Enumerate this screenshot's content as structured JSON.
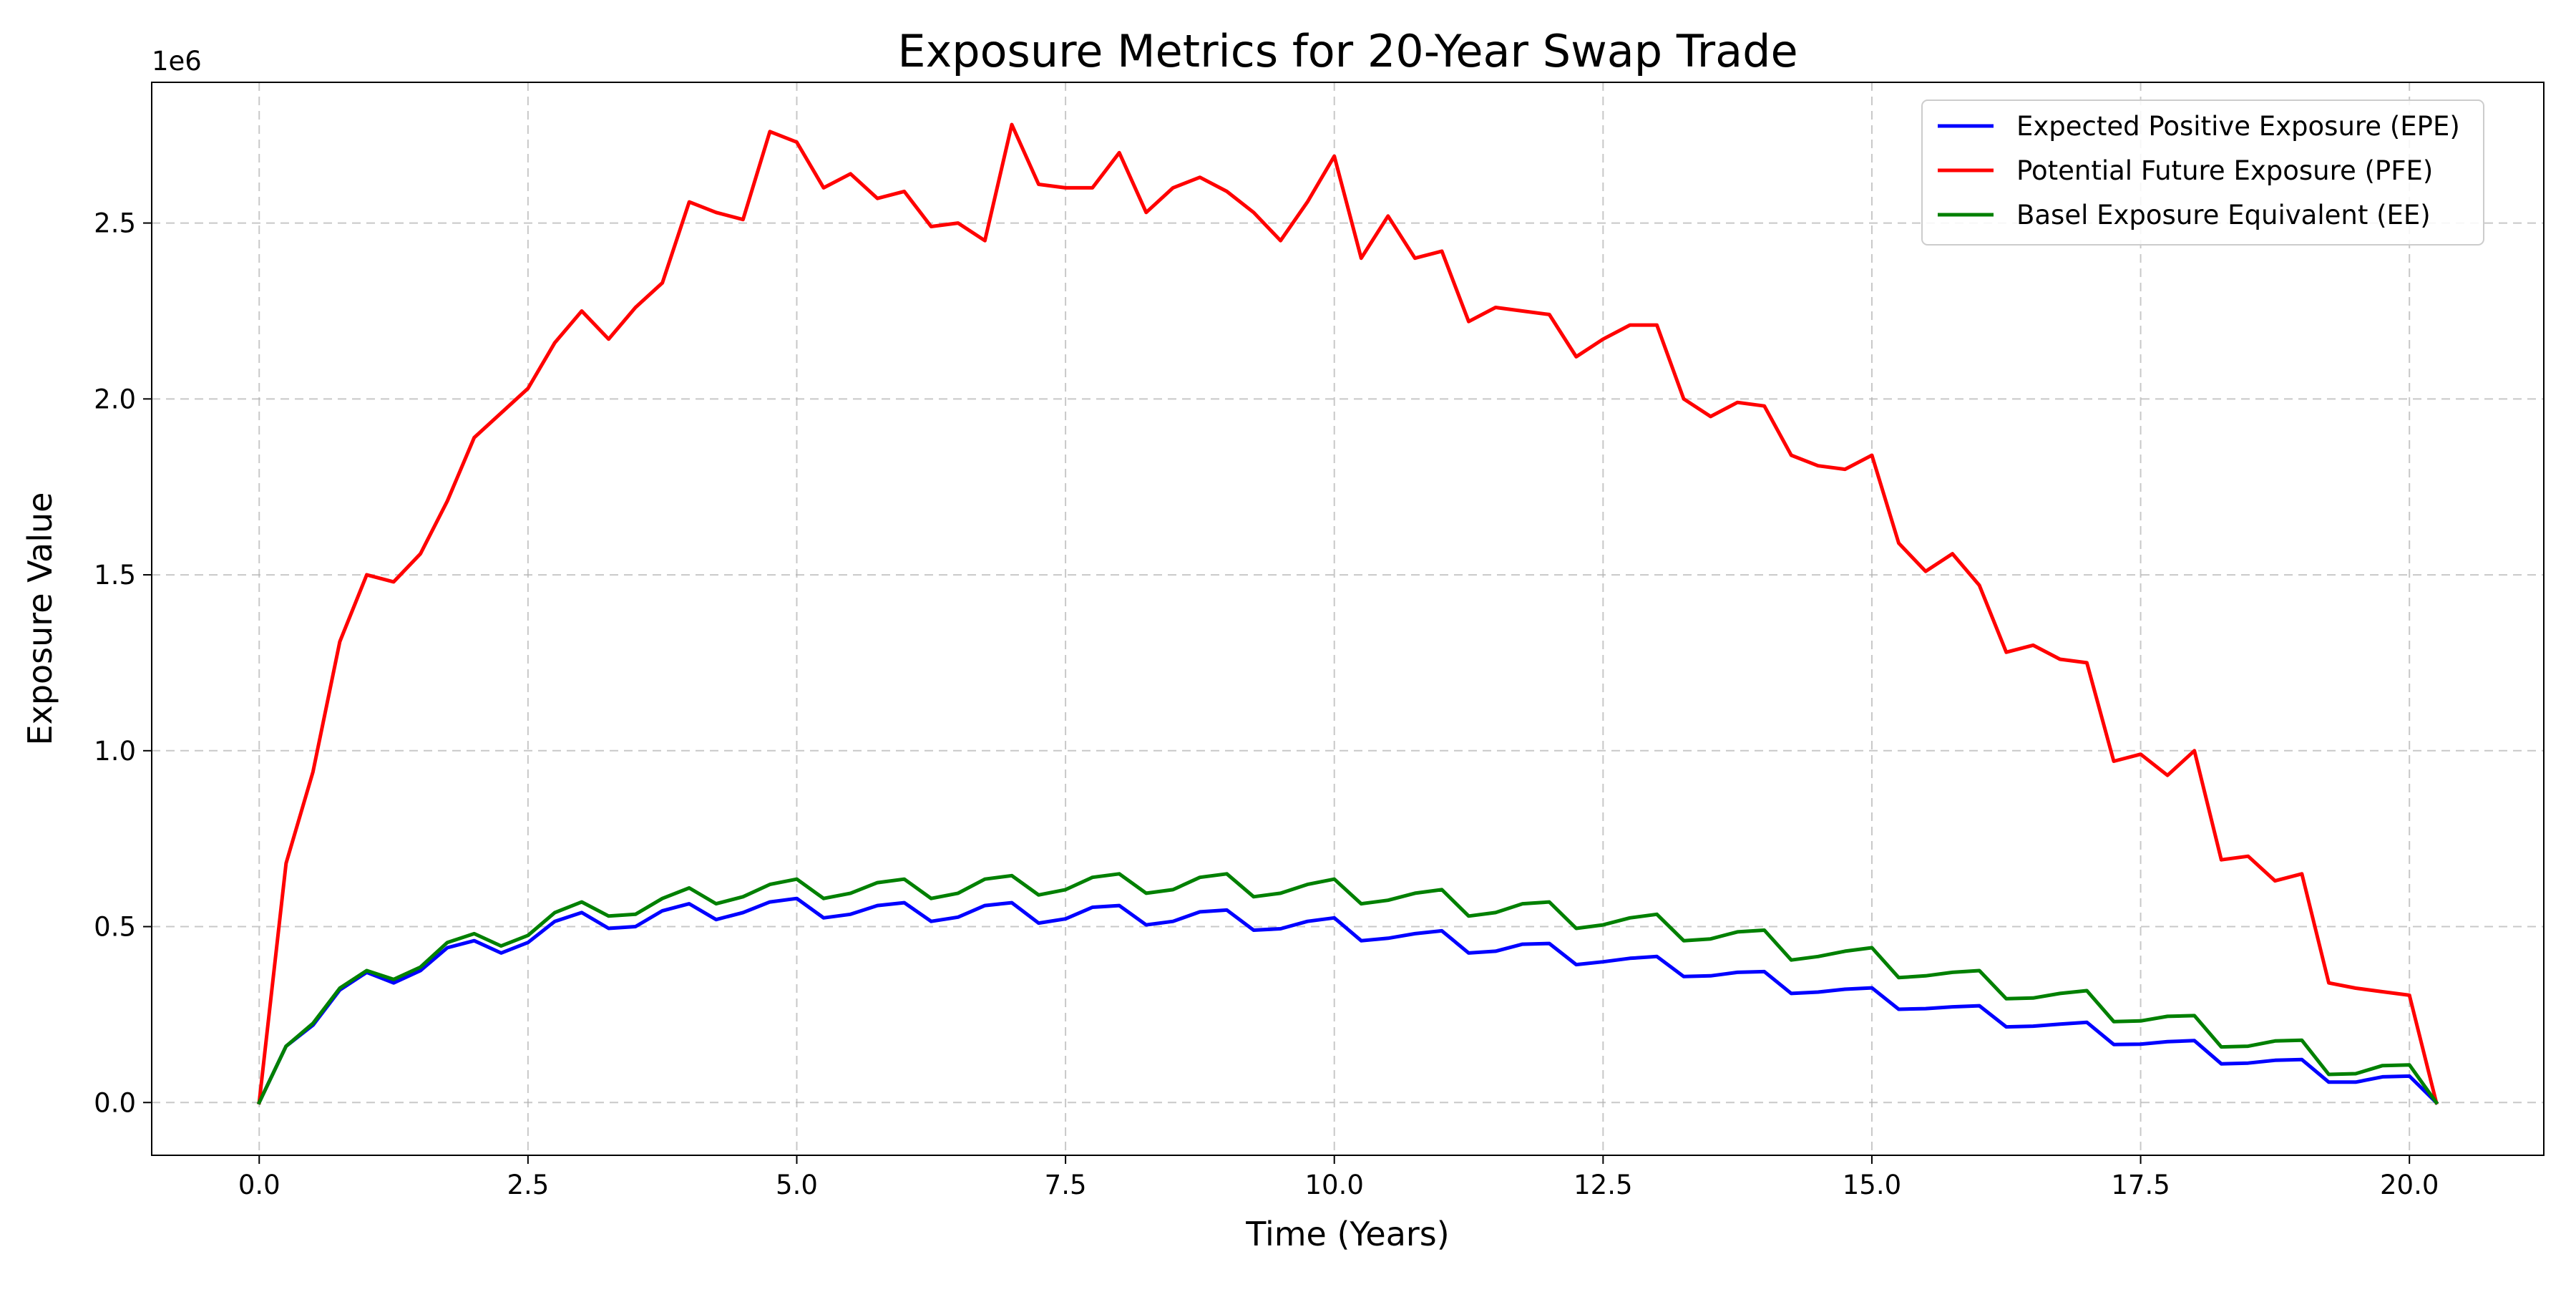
{
  "chart_data": {
    "type": "line",
    "title": "Exposure Metrics for 20-Year Swap Trade",
    "xlabel": "Time (Years)",
    "ylabel": "Exposure Value",
    "y_scale_label": "1e6",
    "xlim": [
      -1.0,
      21.25
    ],
    "ylim": [
      -150000,
      2900000
    ],
    "x_ticks": [
      0.0,
      2.5,
      5.0,
      7.5,
      10.0,
      12.5,
      15.0,
      17.5,
      20.0
    ],
    "x_tick_labels": [
      "0.0",
      "2.5",
      "5.0",
      "7.5",
      "10.0",
      "12.5",
      "15.0",
      "17.5",
      "20.0"
    ],
    "y_ticks": [
      0,
      500000,
      1000000,
      1500000,
      2000000,
      2500000
    ],
    "y_tick_labels": [
      "0.0",
      "0.5",
      "1.0",
      "1.5",
      "2.0",
      "2.5"
    ],
    "grid": true,
    "legend_position": "top-right",
    "x_start": 0.0,
    "x_step": 0.25,
    "series": [
      {
        "name": "Expected Positive Exposure (EPE)",
        "color": "#0000ff",
        "values": [
          0,
          160000,
          220000,
          320000,
          370000,
          340000,
          375000,
          440000,
          460000,
          425000,
          455000,
          515000,
          540000,
          495000,
          500000,
          545000,
          565000,
          520000,
          540000,
          570000,
          580000,
          525000,
          535000,
          560000,
          568000,
          515000,
          527000,
          560000,
          568000,
          510000,
          522000,
          555000,
          560000,
          505000,
          515000,
          542000,
          547000,
          490000,
          494000,
          515000,
          525000,
          460000,
          467000,
          480000,
          488000,
          425000,
          430000,
          450000,
          452000,
          392000,
          400000,
          410000,
          415000,
          358000,
          360000,
          370000,
          372000,
          310000,
          314000,
          322000,
          326000,
          265000,
          267000,
          272000,
          275000,
          215000,
          217000,
          223000,
          228000,
          165000,
          166000,
          173000,
          176000,
          110000,
          112000,
          120000,
          122000,
          58000,
          58000,
          73000,
          75000,
          0
        ]
      },
      {
        "name": "Potential Future Exposure (PFE)",
        "color": "#ff0000",
        "values": [
          0,
          680000,
          940000,
          1310000,
          1500000,
          1480000,
          1560000,
          1710000,
          1890000,
          1960000,
          2030000,
          2160000,
          2250000,
          2170000,
          2260000,
          2330000,
          2560000,
          2530000,
          2510000,
          2760000,
          2730000,
          2600000,
          2640000,
          2570000,
          2590000,
          2490000,
          2500000,
          2450000,
          2780000,
          2610000,
          2600000,
          2600000,
          2700000,
          2530000,
          2600000,
          2630000,
          2590000,
          2530000,
          2450000,
          2560000,
          2690000,
          2400000,
          2520000,
          2400000,
          2420000,
          2220000,
          2260000,
          2250000,
          2240000,
          2120000,
          2170000,
          2210000,
          2210000,
          2000000,
          1950000,
          1990000,
          1980000,
          1840000,
          1810000,
          1800000,
          1840000,
          1590000,
          1510000,
          1560000,
          1470000,
          1280000,
          1300000,
          1260000,
          1250000,
          970000,
          990000,
          930000,
          1000000,
          690000,
          700000,
          630000,
          650000,
          340000,
          325000,
          315000,
          305000,
          0
        ]
      },
      {
        "name": "Basel Exposure Equivalent (EE)",
        "color": "#008000",
        "values": [
          0,
          160000,
          225000,
          325000,
          375000,
          350000,
          385000,
          455000,
          480000,
          445000,
          475000,
          540000,
          570000,
          530000,
          535000,
          580000,
          610000,
          565000,
          585000,
          620000,
          635000,
          580000,
          595000,
          625000,
          635000,
          580000,
          595000,
          635000,
          645000,
          590000,
          605000,
          640000,
          650000,
          595000,
          605000,
          640000,
          650000,
          585000,
          595000,
          620000,
          635000,
          565000,
          575000,
          595000,
          605000,
          530000,
          540000,
          565000,
          570000,
          495000,
          505000,
          525000,
          535000,
          460000,
          465000,
          485000,
          490000,
          405000,
          415000,
          430000,
          440000,
          355000,
          360000,
          370000,
          375000,
          295000,
          297000,
          310000,
          318000,
          230000,
          232000,
          245000,
          247000,
          158000,
          160000,
          175000,
          177000,
          80000,
          82000,
          105000,
          107000,
          0
        ]
      }
    ]
  }
}
